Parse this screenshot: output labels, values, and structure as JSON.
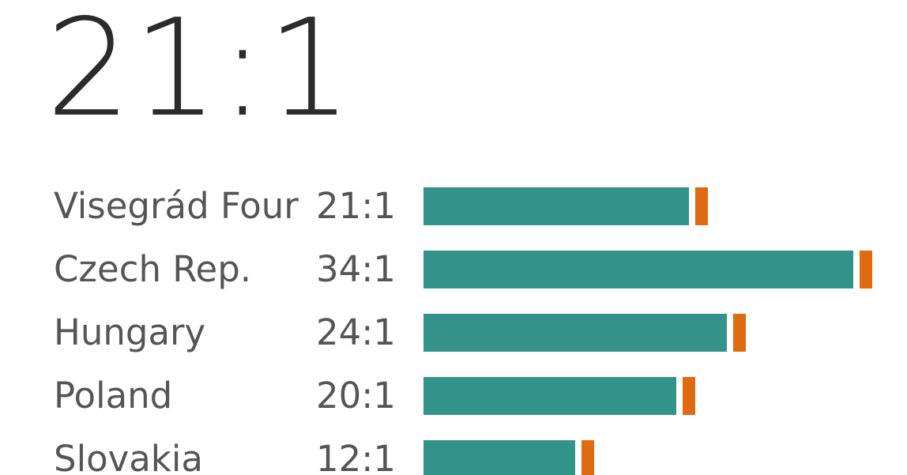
{
  "headline": "21:1",
  "colors": {
    "bar": "#33928a",
    "marker": "#e06a10",
    "text": "#555555",
    "headline": "#2b2b2b"
  },
  "chart_data": {
    "type": "bar",
    "orientation": "horizontal",
    "categories": [
      "Visegrád Four",
      "Czech Rep.",
      "Hungary",
      "Poland",
      "Slovakia"
    ],
    "value_labels": [
      "21:1",
      "34:1",
      "24:1",
      "20:1",
      "12:1"
    ],
    "values": [
      21,
      34,
      24,
      20,
      12
    ],
    "grid": false,
    "legend": "none"
  }
}
